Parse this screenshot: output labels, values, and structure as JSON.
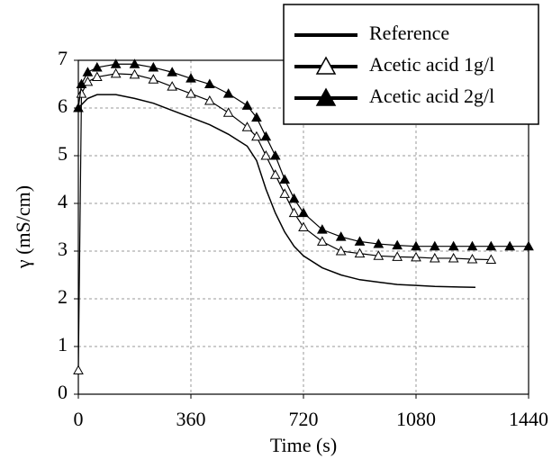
{
  "chart_data": {
    "type": "line",
    "x_label": "Time (s)",
    "y_label": "γ (mS/cm)",
    "xlim": [
      0,
      1440
    ],
    "ylim": [
      0,
      7
    ],
    "xticks": [
      0,
      360,
      720,
      1080,
      1440
    ],
    "yticks": [
      0,
      1,
      2,
      3,
      4,
      5,
      6,
      7
    ],
    "grid": true,
    "legend": "upper right",
    "series": [
      {
        "name": "Reference",
        "color": "#000000",
        "marker": "none",
        "x": [
          0,
          30,
          60,
          120,
          180,
          240,
          300,
          360,
          420,
          480,
          540,
          570,
          600,
          630,
          660,
          690,
          720,
          780,
          840,
          900,
          960,
          1020,
          1080,
          1140,
          1200,
          1270
        ],
        "values": [
          6.0,
          6.2,
          6.28,
          6.28,
          6.2,
          6.1,
          5.95,
          5.8,
          5.65,
          5.45,
          5.2,
          4.9,
          4.3,
          3.8,
          3.4,
          3.1,
          2.9,
          2.65,
          2.5,
          2.4,
          2.35,
          2.3,
          2.28,
          2.26,
          2.25,
          2.24
        ]
      },
      {
        "name": "Acetic acid 1g/l",
        "color": "#000000",
        "marker": "open-triangle",
        "x": [
          0,
          10,
          30,
          60,
          120,
          180,
          240,
          300,
          360,
          420,
          480,
          540,
          570,
          600,
          630,
          660,
          690,
          720,
          780,
          840,
          900,
          960,
          1020,
          1080,
          1140,
          1200,
          1260,
          1320
        ],
        "values": [
          0.5,
          6.3,
          6.55,
          6.65,
          6.72,
          6.7,
          6.6,
          6.45,
          6.3,
          6.15,
          5.9,
          5.6,
          5.4,
          5.0,
          4.6,
          4.2,
          3.8,
          3.5,
          3.2,
          3.0,
          2.95,
          2.9,
          2.88,
          2.87,
          2.85,
          2.85,
          2.83,
          2.82
        ]
      },
      {
        "name": "Acetic acid 2g/l",
        "color": "#000000",
        "marker": "filled-triangle",
        "x": [
          0,
          10,
          30,
          60,
          120,
          180,
          240,
          300,
          360,
          420,
          480,
          540,
          570,
          600,
          630,
          660,
          690,
          720,
          780,
          840,
          900,
          960,
          1020,
          1080,
          1140,
          1200,
          1260,
          1320,
          1380,
          1440
        ],
        "values": [
          6.0,
          6.5,
          6.75,
          6.85,
          6.92,
          6.92,
          6.85,
          6.75,
          6.62,
          6.5,
          6.3,
          6.05,
          5.8,
          5.4,
          5.0,
          4.5,
          4.1,
          3.8,
          3.45,
          3.3,
          3.2,
          3.15,
          3.12,
          3.1,
          3.1,
          3.1,
          3.1,
          3.1,
          3.1,
          3.1
        ]
      }
    ]
  }
}
